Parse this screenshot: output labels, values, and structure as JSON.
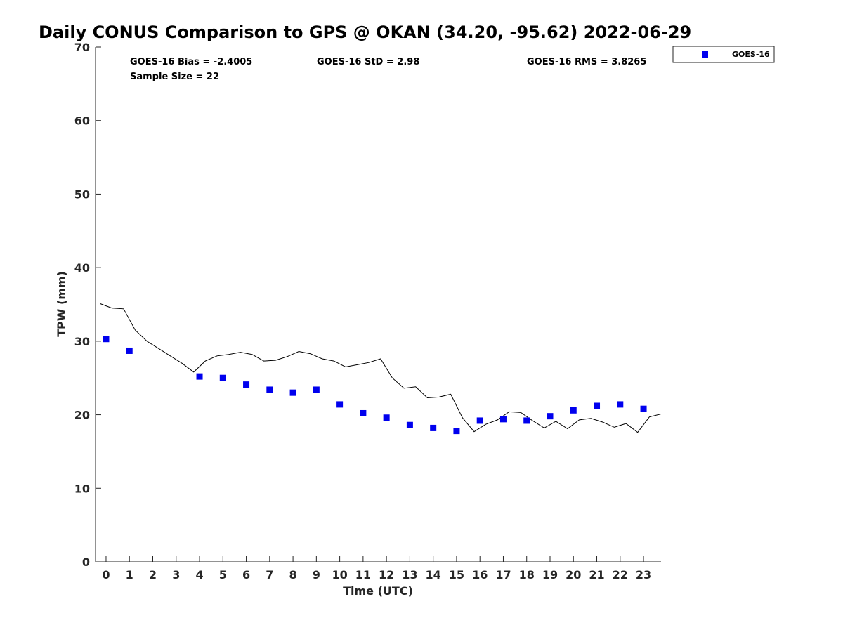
{
  "chart_data": {
    "type": "scatter",
    "title": "Daily CONUS Comparison to GPS @ OKAN (34.20, -95.62) 2022-06-29",
    "xlabel": "Time (UTC)",
    "ylabel": "TPW (mm)",
    "xlim": [
      -0.45,
      23.75
    ],
    "ylim": [
      0,
      70
    ],
    "x_ticks": [
      "0",
      "1",
      "2",
      "3",
      "4",
      "5",
      "6",
      "7",
      "8",
      "9",
      "10",
      "11",
      "12",
      "13",
      "14",
      "15",
      "16",
      "17",
      "18",
      "19",
      "20",
      "21",
      "22",
      "23"
    ],
    "y_ticks": [
      "0",
      "10",
      "20",
      "30",
      "40",
      "50",
      "60",
      "70"
    ],
    "grid": false,
    "legend_position": "top-right",
    "stats": {
      "bias": "GOES-16 Bias = -2.4005",
      "std": "GOES-16 StD = 2.98",
      "rms": "GOES-16 RMS = 3.8265",
      "sample_size": "Sample Size = 22"
    },
    "series": [
      {
        "name": "GOES-16",
        "style": "square-markers",
        "color": "#0000ee",
        "x": [
          0,
          1,
          4,
          5,
          6,
          7,
          8,
          9,
          10,
          11,
          12,
          13,
          14,
          15,
          16,
          17,
          18,
          19,
          20,
          21,
          22,
          23
        ],
        "y": [
          30.3,
          28.7,
          25.2,
          25.0,
          24.1,
          23.4,
          23.0,
          23.4,
          21.4,
          20.2,
          19.6,
          18.6,
          18.2,
          17.8,
          19.2,
          19.4,
          19.2,
          19.8,
          20.6,
          21.2,
          21.4,
          20.8
        ]
      },
      {
        "style": "line",
        "color": "#000000",
        "x": [
          -0.25,
          0.25,
          0.75,
          1.25,
          1.75,
          2.25,
          2.75,
          3.25,
          3.75,
          4.25,
          4.75,
          5.25,
          5.75,
          6.25,
          6.75,
          7.25,
          7.75,
          8.25,
          8.75,
          9.25,
          9.75,
          10.25,
          10.75,
          11.25,
          11.75,
          12.25,
          12.75,
          13.25,
          13.75,
          14.25,
          14.75,
          15.25,
          15.75,
          16.25,
          16.75,
          17.25,
          17.75,
          18.25,
          18.75,
          19.25,
          19.75,
          20.25,
          20.75,
          21.25,
          21.75,
          22.25,
          22.75,
          23.25,
          23.75
        ],
        "y": [
          35.1,
          34.5,
          34.4,
          31.5,
          30.0,
          29.0,
          28.0,
          27.0,
          25.8,
          27.3,
          28.0,
          28.2,
          28.5,
          28.2,
          27.3,
          27.4,
          27.9,
          28.6,
          28.3,
          27.6,
          27.3,
          26.5,
          26.8,
          27.1,
          27.6,
          25.0,
          23.6,
          23.8,
          22.3,
          22.4,
          22.8,
          19.6,
          17.7,
          18.7,
          19.3,
          20.4,
          20.3,
          19.2,
          18.2,
          19.1,
          18.1,
          19.3,
          19.5,
          19.0,
          18.3,
          18.8,
          17.6,
          19.7,
          20.1
        ]
      }
    ]
  }
}
